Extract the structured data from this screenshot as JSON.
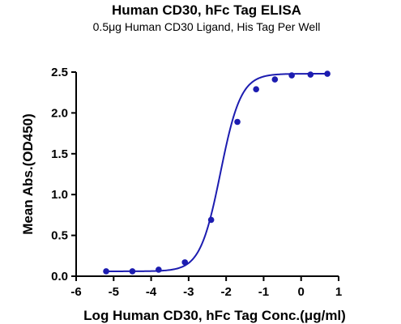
{
  "chart_data": {
    "type": "scatter",
    "title": "Human CD30, hFc Tag ELISA",
    "subtitle": "0.5μg Human CD30 Ligand, His Tag Per Well",
    "xlabel": "Log Human CD30, hFc Tag Conc.(μg/ml)",
    "ylabel": "Mean Abs.(OD450)",
    "xlim": [
      -6,
      1
    ],
    "ylim": [
      0,
      2.5
    ],
    "xticks": [
      "-6",
      "-5",
      "-4",
      "-3",
      "-2",
      "-1",
      "0",
      "1"
    ],
    "yticks": [
      "0.0",
      "0.5",
      "1.0",
      "1.5",
      "2.0",
      "2.5"
    ],
    "grid": false,
    "fit_curve": true,
    "series": [
      {
        "x": [
          -5.2,
          -4.5,
          -3.8,
          -3.1,
          -2.4,
          -1.7,
          -1.2,
          -0.7,
          -0.25,
          0.25,
          0.7
        ],
        "y": [
          0.06,
          0.06,
          0.08,
          0.17,
          0.69,
          1.89,
          2.29,
          2.41,
          2.46,
          2.47,
          2.48
        ]
      }
    ],
    "curve": {
      "bottom": 0.06,
      "top": 2.48,
      "log_ec50": -2.15,
      "hill_slope": 1.6
    },
    "colors": {
      "series": "#1c1cb0",
      "axis": "#000000"
    }
  }
}
